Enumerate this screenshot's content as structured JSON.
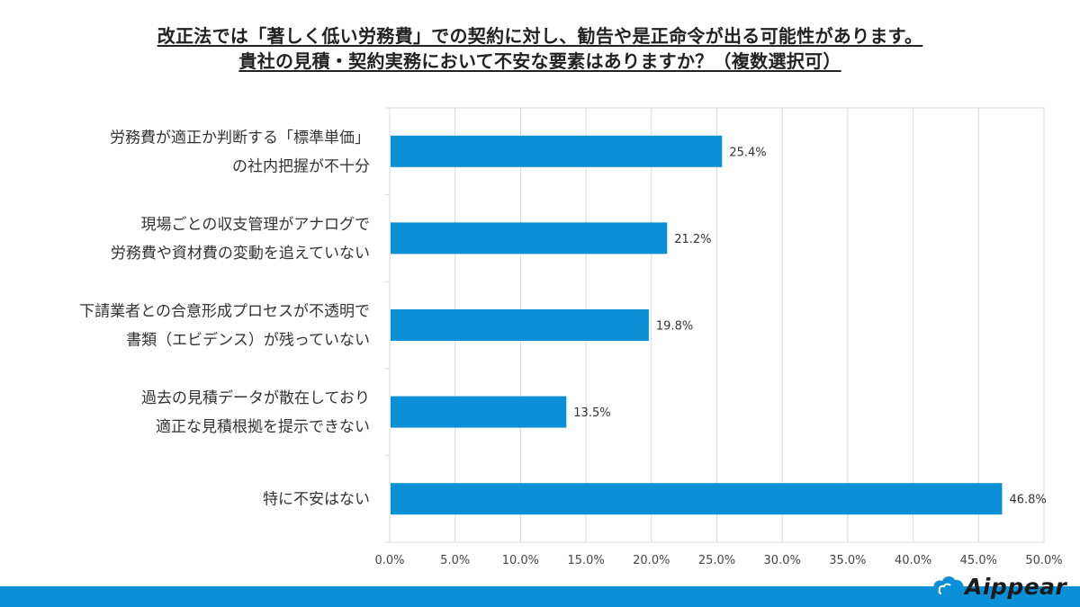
{
  "title": {
    "line1": "改正法では「著しく低い労務費」での契約に対し、勧告や是正命令が出る可能性があります。",
    "line2": "貴社の見積・契約実務において不安な要素はありますか？（複数選択可）"
  },
  "chart_data": {
    "type": "bar",
    "orientation": "horizontal",
    "categories": [
      [
        "労務費が適正か判断する「標準単価」",
        "の社内把握が不十分"
      ],
      [
        "現場ごとの収支管理がアナログで",
        "労務費や資材費の変動を追えていない"
      ],
      [
        "下請業者との合意形成プロセスが不透明で",
        "書類（エビデンス）が残っていない"
      ],
      [
        "過去の見積データが散在しており",
        "適正な見積根拠を提示できない"
      ],
      [
        "特に不安はない"
      ]
    ],
    "values": [
      25.4,
      21.2,
      19.8,
      13.5,
      46.8
    ],
    "data_labels": [
      "25.4%",
      "21.2%",
      "19.8%",
      "13.5%",
      "46.8%"
    ],
    "xlim": [
      0,
      50
    ],
    "x_ticks": [
      "0.0%",
      "5.0%",
      "10.0%",
      "15.0%",
      "20.0%",
      "25.0%",
      "30.0%",
      "35.0%",
      "40.0%",
      "45.0%",
      "50.0%"
    ],
    "grid": true,
    "bar_color": "#0b8fd6"
  },
  "footer": {
    "brand": "Aippear",
    "color": "#0b8fd6"
  }
}
